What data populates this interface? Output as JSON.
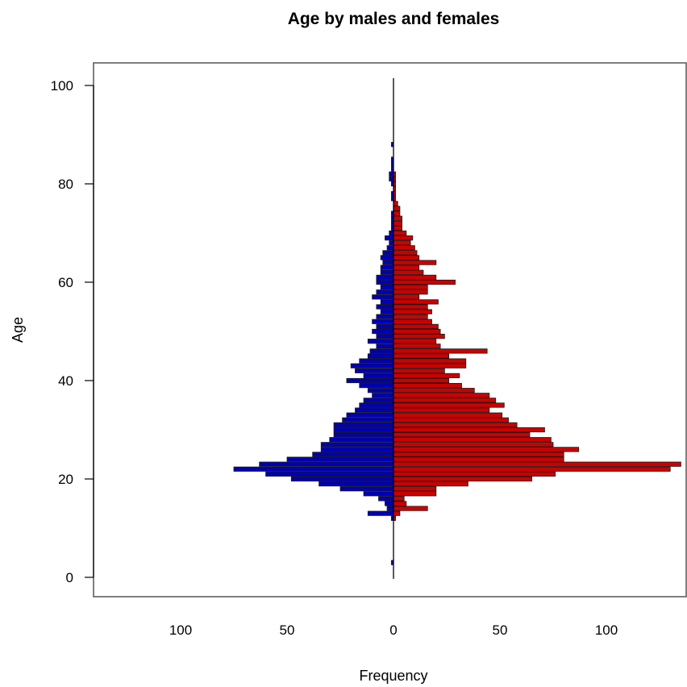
{
  "chart_data": {
    "type": "bar",
    "title": "Age by males and females",
    "xlabel": "Frequency",
    "ylabel": "Age",
    "xlim": [
      -140,
      140
    ],
    "ylim": [
      -4,
      104
    ],
    "x_ticks": [
      -100,
      -50,
      0,
      50,
      100
    ],
    "x_tick_labels": [
      "100",
      "50",
      "0",
      "50",
      "100"
    ],
    "y_ticks": [
      0,
      20,
      40,
      60,
      80,
      100
    ],
    "y_tick_labels": [
      "0",
      "20",
      "40",
      "60",
      "80",
      "100"
    ],
    "ages": [
      3,
      10,
      11,
      12,
      13,
      14,
      15,
      16,
      17,
      18,
      19,
      20,
      21,
      22,
      23,
      24,
      25,
      26,
      27,
      28,
      29,
      30,
      31,
      32,
      33,
      34,
      35,
      36,
      37,
      38,
      39,
      40,
      41,
      42,
      43,
      44,
      45,
      46,
      47,
      48,
      49,
      50,
      51,
      52,
      53,
      54,
      55,
      56,
      57,
      58,
      59,
      60,
      61,
      62,
      63,
      64,
      65,
      66,
      67,
      68,
      69,
      70,
      71,
      72,
      73,
      74,
      75,
      76,
      77,
      78,
      79,
      80,
      81,
      82,
      83,
      84,
      85,
      86,
      87,
      88
    ],
    "series": [
      {
        "color": "#0000b3",
        "side": "left",
        "values": [
          1,
          0,
          0,
          1,
          12,
          3,
          4,
          7,
          14,
          25,
          35,
          48,
          60,
          75,
          63,
          50,
          38,
          34,
          34,
          30,
          28,
          28,
          28,
          24,
          22,
          18,
          16,
          14,
          10,
          12,
          16,
          22,
          14,
          18,
          20,
          16,
          12,
          11,
          8,
          12,
          8,
          10,
          8,
          10,
          8,
          6,
          8,
          6,
          10,
          8,
          6,
          8,
          8,
          6,
          6,
          5,
          6,
          5,
          3,
          2,
          4,
          2,
          1,
          1,
          1,
          1,
          0,
          0,
          1,
          1,
          0,
          1,
          2,
          2,
          1,
          1,
          1,
          0,
          0,
          1
        ]
      },
      {
        "color": "#cc0000",
        "side": "right",
        "values": [
          0,
          0,
          0,
          1,
          3,
          16,
          6,
          5,
          20,
          20,
          35,
          65,
          76,
          130,
          135,
          80,
          80,
          87,
          75,
          74,
          64,
          71,
          58,
          54,
          51,
          45,
          52,
          48,
          45,
          38,
          32,
          26,
          31,
          24,
          34,
          34,
          26,
          44,
          22,
          20,
          24,
          22,
          21,
          18,
          16,
          18,
          16,
          21,
          12,
          16,
          16,
          29,
          20,
          14,
          12,
          20,
          12,
          11,
          10,
          8,
          9,
          6,
          4,
          4,
          4,
          3,
          3,
          2,
          1,
          1,
          1,
          1,
          1,
          1,
          0,
          0,
          0,
          0,
          0,
          0
        ]
      }
    ],
    "grid": false,
    "legend": "none"
  }
}
